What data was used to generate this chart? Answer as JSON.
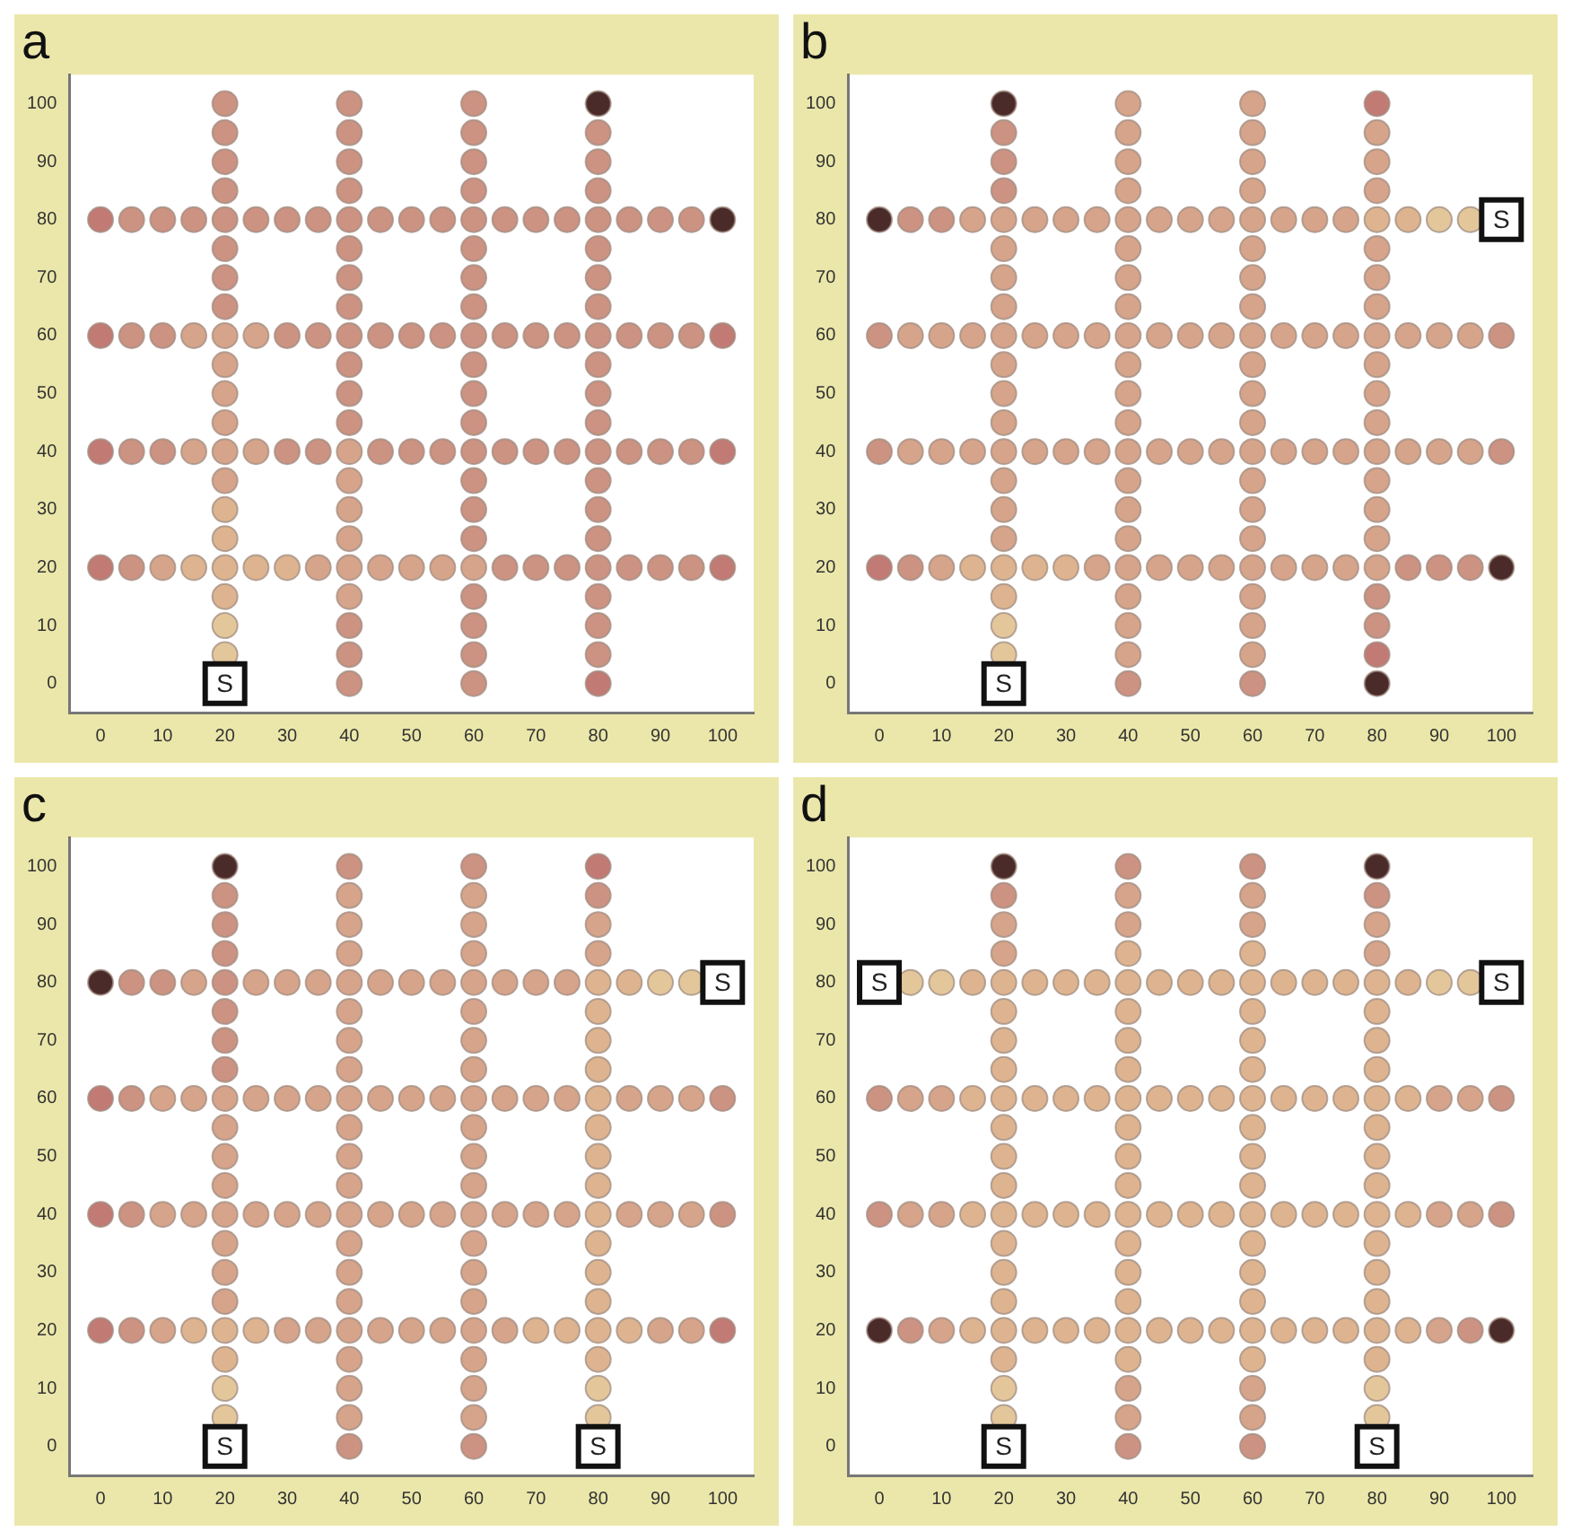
{
  "chart_data": [
    {
      "type": "scatter",
      "title": "a",
      "xlim": [
        -5,
        105
      ],
      "ylim": [
        -5,
        105
      ],
      "xticks": [
        0,
        10,
        20,
        30,
        40,
        50,
        60,
        70,
        80,
        90,
        100
      ],
      "yticks": [
        0,
        10,
        20,
        30,
        40,
        50,
        60,
        70,
        80,
        90,
        100
      ],
      "marker": "circle",
      "annotations": [
        {
          "text": "S",
          "x": 20,
          "y": 0
        }
      ],
      "series": [
        {
          "x": [
            20,
            20,
            20,
            20,
            20,
            20,
            20,
            20,
            20,
            20,
            20,
            20,
            20,
            20,
            20,
            20,
            20,
            20,
            20,
            20
          ],
          "values": [
            5,
            10,
            15,
            20,
            25,
            30,
            35,
            40,
            45,
            50,
            55,
            60,
            65,
            70,
            75,
            80,
            85,
            90,
            95,
            100
          ],
          "colors": [
            "#e3c79b",
            "#e3c79b",
            "#ddb48f",
            "#ddb48f",
            "#ddb48f",
            "#ddb48f",
            "#d6a48a",
            "#d6a48a",
            "#d6a48a",
            "#d6a48a",
            "#d6a48a",
            "#d6a48a",
            "#cc9282",
            "#cc9282",
            "#cc9282",
            "#cc9282",
            "#cc9282",
            "#cc9282",
            "#cc9282",
            "#cc9282"
          ]
        },
        {
          "x": [
            40,
            40,
            40,
            40,
            40,
            40,
            40,
            40,
            40,
            40,
            40,
            40,
            40,
            40,
            40,
            40,
            40,
            40,
            40,
            40,
            40
          ],
          "values": [
            0,
            5,
            10,
            15,
            20,
            25,
            30,
            35,
            40,
            45,
            50,
            55,
            60,
            65,
            70,
            75,
            80,
            85,
            90,
            95,
            100
          ],
          "colors": [
            "#cc9282",
            "#cc9282",
            "#cc9282",
            "#d6a48a",
            "#d6a48a",
            "#d6a48a",
            "#d6a48a",
            "#d6a48a",
            "#d6a48a",
            "#cc9282",
            "#cc9282",
            "#cc9282",
            "#cc9282",
            "#cc9282",
            "#cc9282",
            "#cc9282",
            "#cc9282",
            "#cc9282",
            "#cc9282",
            "#cc9282",
            "#cc9282"
          ]
        },
        {
          "x": [
            60,
            60,
            60,
            60,
            60,
            60,
            60,
            60,
            60,
            60,
            60,
            60,
            60,
            60,
            60,
            60,
            60,
            60,
            60,
            60,
            60
          ],
          "values": [
            0,
            5,
            10,
            15,
            20,
            25,
            30,
            35,
            40,
            45,
            50,
            55,
            60,
            65,
            70,
            75,
            80,
            85,
            90,
            95,
            100
          ],
          "colors": [
            "#cc9282",
            "#cc9282",
            "#cc9282",
            "#cc9282",
            "#d6a48a",
            "#cc9282",
            "#cc9282",
            "#cc9282",
            "#cc9282",
            "#cc9282",
            "#cc9282",
            "#cc9282",
            "#cc9282",
            "#cc9282",
            "#cc9282",
            "#cc9282",
            "#cc9282",
            "#cc9282",
            "#cc9282",
            "#cc9282",
            "#cc9282"
          ]
        },
        {
          "x": [
            80,
            80,
            80,
            80,
            80,
            80,
            80,
            80,
            80,
            80,
            80,
            80,
            80,
            80,
            80,
            80,
            80,
            80,
            80,
            80,
            80
          ],
          "values": [
            0,
            5,
            10,
            15,
            20,
            25,
            30,
            35,
            40,
            45,
            50,
            55,
            60,
            65,
            70,
            75,
            80,
            85,
            90,
            95,
            100
          ],
          "colors": [
            "#c27a74",
            "#cc9282",
            "#cc9282",
            "#cc9282",
            "#cc9282",
            "#cc9282",
            "#cc9282",
            "#cc9282",
            "#cc9282",
            "#cc9282",
            "#cc9282",
            "#cc9282",
            "#cc9282",
            "#cc9282",
            "#cc9282",
            "#cc9282",
            "#cc9282",
            "#cc9282",
            "#cc9282",
            "#cc9282",
            "#4b2b29"
          ]
        },
        {
          "x": [
            0,
            5,
            10,
            15,
            25,
            30,
            35,
            45,
            50,
            55,
            65,
            70,
            75,
            85,
            90,
            95,
            100
          ],
          "values": [
            20,
            20,
            20,
            20,
            20,
            20,
            20,
            20,
            20,
            20,
            20,
            20,
            20,
            20,
            20,
            20,
            20
          ],
          "colors": [
            "#c27a74",
            "#cc9282",
            "#d6a48a",
            "#ddb48f",
            "#ddb48f",
            "#ddb48f",
            "#d6a48a",
            "#d6a48a",
            "#d6a48a",
            "#d6a48a",
            "#cc9282",
            "#cc9282",
            "#cc9282",
            "#cc9282",
            "#cc9282",
            "#cc9282",
            "#c27a74"
          ]
        },
        {
          "x": [
            0,
            5,
            10,
            15,
            25,
            30,
            35,
            45,
            50,
            55,
            65,
            70,
            75,
            85,
            90,
            95,
            100
          ],
          "values": [
            40,
            40,
            40,
            40,
            40,
            40,
            40,
            40,
            40,
            40,
            40,
            40,
            40,
            40,
            40,
            40,
            40
          ],
          "colors": [
            "#c27a74",
            "#cc9282",
            "#cc9282",
            "#d6a48a",
            "#d6a48a",
            "#cc9282",
            "#cc9282",
            "#cc9282",
            "#cc9282",
            "#cc9282",
            "#cc9282",
            "#cc9282",
            "#cc9282",
            "#cc9282",
            "#cc9282",
            "#cc9282",
            "#c27a74"
          ]
        },
        {
          "x": [
            0,
            5,
            10,
            15,
            25,
            30,
            35,
            45,
            50,
            55,
            65,
            70,
            75,
            85,
            90,
            95,
            100
          ],
          "values": [
            60,
            60,
            60,
            60,
            60,
            60,
            60,
            60,
            60,
            60,
            60,
            60,
            60,
            60,
            60,
            60,
            60
          ],
          "colors": [
            "#c27a74",
            "#cc9282",
            "#cc9282",
            "#d6a48a",
            "#d6a48a",
            "#cc9282",
            "#cc9282",
            "#cc9282",
            "#cc9282",
            "#cc9282",
            "#cc9282",
            "#cc9282",
            "#cc9282",
            "#cc9282",
            "#cc9282",
            "#cc9282",
            "#c27a74"
          ]
        },
        {
          "x": [
            0,
            5,
            10,
            15,
            25,
            30,
            35,
            45,
            50,
            55,
            65,
            70,
            75,
            85,
            90,
            95,
            100
          ],
          "values": [
            80,
            80,
            80,
            80,
            80,
            80,
            80,
            80,
            80,
            80,
            80,
            80,
            80,
            80,
            80,
            80,
            80
          ],
          "colors": [
            "#c27a74",
            "#cc9282",
            "#cc9282",
            "#cc9282",
            "#cc9282",
            "#cc9282",
            "#cc9282",
            "#cc9282",
            "#cc9282",
            "#cc9282",
            "#cc9282",
            "#cc9282",
            "#cc9282",
            "#cc9282",
            "#cc9282",
            "#cc9282",
            "#4b2b29"
          ]
        }
      ]
    },
    {
      "type": "scatter",
      "title": "b",
      "xlim": [
        -5,
        105
      ],
      "ylim": [
        -5,
        105
      ],
      "xticks": [
        0,
        10,
        20,
        30,
        40,
        50,
        60,
        70,
        80,
        90,
        100
      ],
      "yticks": [
        0,
        10,
        20,
        30,
        40,
        50,
        60,
        70,
        80,
        90,
        100
      ],
      "marker": "circle",
      "annotations": [
        {
          "text": "S",
          "x": 20,
          "y": 0
        },
        {
          "text": "S",
          "x": 100,
          "y": 80
        }
      ],
      "series": [
        {
          "x": [
            20,
            20,
            20,
            20,
            20,
            20,
            20,
            20,
            20,
            20,
            20,
            20,
            20,
            20,
            20,
            20,
            20,
            20,
            20,
            20
          ],
          "values": [
            5,
            10,
            15,
            20,
            25,
            30,
            35,
            40,
            45,
            50,
            55,
            60,
            65,
            70,
            75,
            80,
            85,
            90,
            95,
            100
          ],
          "colors": [
            "#e3c79b",
            "#e3c79b",
            "#ddb48f",
            "#ddb48f",
            "#d6a48a",
            "#d6a48a",
            "#d6a48a",
            "#d6a48a",
            "#d6a48a",
            "#d6a48a",
            "#d6a48a",
            "#d6a48a",
            "#d6a48a",
            "#d6a48a",
            "#d6a48a",
            "#d6a48a",
            "#cc9282",
            "#cc9282",
            "#cc9282",
            "#4b2b29"
          ]
        },
        {
          "x": [
            40,
            40,
            40,
            40,
            40,
            40,
            40,
            40,
            40,
            40,
            40,
            40,
            40,
            40,
            40,
            40,
            40,
            40,
            40,
            40,
            40
          ],
          "values": [
            0,
            5,
            10,
            15,
            20,
            25,
            30,
            35,
            40,
            45,
            50,
            55,
            60,
            65,
            70,
            75,
            80,
            85,
            90,
            95,
            100
          ],
          "colors": [
            "#cc9282",
            "#d6a48a",
            "#d6a48a",
            "#d6a48a",
            "#d6a48a",
            "#d6a48a",
            "#d6a48a",
            "#d6a48a",
            "#d6a48a",
            "#d6a48a",
            "#d6a48a",
            "#d6a48a",
            "#d6a48a",
            "#d6a48a",
            "#d6a48a",
            "#d6a48a",
            "#d6a48a",
            "#d6a48a",
            "#d6a48a",
            "#d6a48a",
            "#d6a48a"
          ]
        },
        {
          "x": [
            60,
            60,
            60,
            60,
            60,
            60,
            60,
            60,
            60,
            60,
            60,
            60,
            60,
            60,
            60,
            60,
            60,
            60,
            60,
            60,
            60
          ],
          "values": [
            0,
            5,
            10,
            15,
            20,
            25,
            30,
            35,
            40,
            45,
            50,
            55,
            60,
            65,
            70,
            75,
            80,
            85,
            90,
            95,
            100
          ],
          "colors": [
            "#cc9282",
            "#d6a48a",
            "#d6a48a",
            "#d6a48a",
            "#d6a48a",
            "#d6a48a",
            "#d6a48a",
            "#d6a48a",
            "#d6a48a",
            "#d6a48a",
            "#d6a48a",
            "#d6a48a",
            "#d6a48a",
            "#d6a48a",
            "#d6a48a",
            "#d6a48a",
            "#d6a48a",
            "#d6a48a",
            "#d6a48a",
            "#d6a48a",
            "#d6a48a"
          ]
        },
        {
          "x": [
            80,
            80,
            80,
            80,
            80,
            80,
            80,
            80,
            80,
            80,
            80,
            80,
            80,
            80,
            80,
            80,
            80,
            80,
            80,
            80,
            80
          ],
          "values": [
            0,
            5,
            10,
            15,
            20,
            25,
            30,
            35,
            40,
            45,
            50,
            55,
            60,
            65,
            70,
            75,
            80,
            85,
            90,
            95,
            100
          ],
          "colors": [
            "#4b2b29",
            "#c27a74",
            "#cc9282",
            "#cc9282",
            "#d6a48a",
            "#d6a48a",
            "#d6a48a",
            "#d6a48a",
            "#d6a48a",
            "#d6a48a",
            "#d6a48a",
            "#d6a48a",
            "#d6a48a",
            "#d6a48a",
            "#d6a48a",
            "#d6a48a",
            "#ddb48f",
            "#d6a48a",
            "#d6a48a",
            "#d6a48a",
            "#c27a74"
          ]
        },
        {
          "x": [
            0,
            5,
            10,
            15,
            25,
            30,
            35,
            45,
            50,
            55,
            65,
            70,
            75,
            85,
            90,
            95,
            100
          ],
          "values": [
            20,
            20,
            20,
            20,
            20,
            20,
            20,
            20,
            20,
            20,
            20,
            20,
            20,
            20,
            20,
            20,
            20
          ],
          "colors": [
            "#c27a74",
            "#cc9282",
            "#d6a48a",
            "#ddb48f",
            "#ddb48f",
            "#ddb48f",
            "#d6a48a",
            "#d6a48a",
            "#d6a48a",
            "#d6a48a",
            "#d6a48a",
            "#d6a48a",
            "#d6a48a",
            "#cc9282",
            "#cc9282",
            "#cc9282",
            "#4b2b29"
          ]
        },
        {
          "x": [
            0,
            5,
            10,
            15,
            25,
            30,
            35,
            45,
            50,
            55,
            65,
            70,
            75,
            85,
            90,
            95,
            100
          ],
          "values": [
            40,
            40,
            40,
            40,
            40,
            40,
            40,
            40,
            40,
            40,
            40,
            40,
            40,
            40,
            40,
            40,
            40
          ],
          "colors": [
            "#cc9282",
            "#d6a48a",
            "#d6a48a",
            "#d6a48a",
            "#d6a48a",
            "#d6a48a",
            "#d6a48a",
            "#d6a48a",
            "#d6a48a",
            "#d6a48a",
            "#d6a48a",
            "#d6a48a",
            "#d6a48a",
            "#d6a48a",
            "#d6a48a",
            "#d6a48a",
            "#cc9282"
          ]
        },
        {
          "x": [
            0,
            5,
            10,
            15,
            25,
            30,
            35,
            45,
            50,
            55,
            65,
            70,
            75,
            85,
            90,
            95,
            100
          ],
          "values": [
            60,
            60,
            60,
            60,
            60,
            60,
            60,
            60,
            60,
            60,
            60,
            60,
            60,
            60,
            60,
            60,
            60
          ],
          "colors": [
            "#cc9282",
            "#d6a48a",
            "#d6a48a",
            "#d6a48a",
            "#d6a48a",
            "#d6a48a",
            "#d6a48a",
            "#d6a48a",
            "#d6a48a",
            "#d6a48a",
            "#d6a48a",
            "#d6a48a",
            "#d6a48a",
            "#d6a48a",
            "#d6a48a",
            "#d6a48a",
            "#cc9282"
          ]
        },
        {
          "x": [
            0,
            5,
            10,
            15,
            25,
            30,
            35,
            45,
            50,
            55,
            65,
            70,
            75,
            85,
            90,
            95
          ],
          "values": [
            80,
            80,
            80,
            80,
            80,
            80,
            80,
            80,
            80,
            80,
            80,
            80,
            80,
            80,
            80,
            80
          ],
          "colors": [
            "#4b2b29",
            "#cc9282",
            "#cc9282",
            "#d6a48a",
            "#d6a48a",
            "#d6a48a",
            "#d6a48a",
            "#d6a48a",
            "#d6a48a",
            "#d6a48a",
            "#d6a48a",
            "#d6a48a",
            "#d6a48a",
            "#ddb48f",
            "#e3c79b",
            "#e3c79b"
          ]
        }
      ]
    },
    {
      "type": "scatter",
      "title": "c",
      "xlim": [
        -5,
        105
      ],
      "ylim": [
        -5,
        105
      ],
      "xticks": [
        0,
        10,
        20,
        30,
        40,
        50,
        60,
        70,
        80,
        90,
        100
      ],
      "yticks": [
        0,
        10,
        20,
        30,
        40,
        50,
        60,
        70,
        80,
        90,
        100
      ],
      "marker": "circle",
      "annotations": [
        {
          "text": "S",
          "x": 20,
          "y": 0
        },
        {
          "text": "S",
          "x": 80,
          "y": 0
        },
        {
          "text": "S",
          "x": 100,
          "y": 80
        }
      ],
      "series": [
        {
          "x": [
            20,
            20,
            20,
            20,
            20,
            20,
            20,
            20,
            20,
            20,
            20,
            20,
            20,
            20,
            20,
            20,
            20,
            20,
            20,
            20
          ],
          "values": [
            5,
            10,
            15,
            20,
            25,
            30,
            35,
            40,
            45,
            50,
            55,
            60,
            65,
            70,
            75,
            80,
            85,
            90,
            95,
            100
          ],
          "colors": [
            "#e3c79b",
            "#e3c79b",
            "#ddb48f",
            "#ddb48f",
            "#d6a48a",
            "#d6a48a",
            "#d6a48a",
            "#d6a48a",
            "#d6a48a",
            "#d6a48a",
            "#d6a48a",
            "#d6a48a",
            "#cc9282",
            "#cc9282",
            "#cc9282",
            "#cc9282",
            "#cc9282",
            "#cc9282",
            "#cc9282",
            "#4b2b29"
          ]
        },
        {
          "x": [
            40,
            40,
            40,
            40,
            40,
            40,
            40,
            40,
            40,
            40,
            40,
            40,
            40,
            40,
            40,
            40,
            40,
            40,
            40,
            40,
            40
          ],
          "values": [
            0,
            5,
            10,
            15,
            20,
            25,
            30,
            35,
            40,
            45,
            50,
            55,
            60,
            65,
            70,
            75,
            80,
            85,
            90,
            95,
            100
          ],
          "colors": [
            "#cc9282",
            "#d6a48a",
            "#d6a48a",
            "#d6a48a",
            "#d6a48a",
            "#d6a48a",
            "#d6a48a",
            "#d6a48a",
            "#d6a48a",
            "#d6a48a",
            "#d6a48a",
            "#d6a48a",
            "#d6a48a",
            "#d6a48a",
            "#d6a48a",
            "#d6a48a",
            "#d6a48a",
            "#d6a48a",
            "#d6a48a",
            "#d6a48a",
            "#cc9282"
          ]
        },
        {
          "x": [
            60,
            60,
            60,
            60,
            60,
            60,
            60,
            60,
            60,
            60,
            60,
            60,
            60,
            60,
            60,
            60,
            60,
            60,
            60,
            60,
            60
          ],
          "values": [
            0,
            5,
            10,
            15,
            20,
            25,
            30,
            35,
            40,
            45,
            50,
            55,
            60,
            65,
            70,
            75,
            80,
            85,
            90,
            95,
            100
          ],
          "colors": [
            "#cc9282",
            "#d6a48a",
            "#d6a48a",
            "#d6a48a",
            "#d6a48a",
            "#d6a48a",
            "#d6a48a",
            "#d6a48a",
            "#d6a48a",
            "#d6a48a",
            "#d6a48a",
            "#d6a48a",
            "#d6a48a",
            "#d6a48a",
            "#d6a48a",
            "#d6a48a",
            "#d6a48a",
            "#d6a48a",
            "#d6a48a",
            "#d6a48a",
            "#cc9282"
          ]
        },
        {
          "x": [
            80,
            80,
            80,
            80,
            80,
            80,
            80,
            80,
            80,
            80,
            80,
            80,
            80,
            80,
            80,
            80,
            80,
            80,
            80,
            80
          ],
          "values": [
            5,
            10,
            15,
            20,
            25,
            30,
            35,
            40,
            45,
            50,
            55,
            60,
            65,
            70,
            75,
            80,
            85,
            90,
            95,
            100
          ],
          "colors": [
            "#e3c79b",
            "#e3c79b",
            "#ddb48f",
            "#ddb48f",
            "#ddb48f",
            "#ddb48f",
            "#ddb48f",
            "#ddb48f",
            "#ddb48f",
            "#ddb48f",
            "#ddb48f",
            "#ddb48f",
            "#ddb48f",
            "#ddb48f",
            "#ddb48f",
            "#ddb48f",
            "#d6a48a",
            "#d6a48a",
            "#cc9282",
            "#c27a74"
          ]
        },
        {
          "x": [
            0,
            5,
            10,
            15,
            25,
            30,
            35,
            45,
            50,
            55,
            65,
            70,
            75,
            85,
            90,
            95,
            100
          ],
          "values": [
            20,
            20,
            20,
            20,
            20,
            20,
            20,
            20,
            20,
            20,
            20,
            20,
            20,
            20,
            20,
            20,
            20
          ],
          "colors": [
            "#c27a74",
            "#cc9282",
            "#d6a48a",
            "#ddb48f",
            "#ddb48f",
            "#d6a48a",
            "#d6a48a",
            "#d6a48a",
            "#d6a48a",
            "#d6a48a",
            "#d6a48a",
            "#ddb48f",
            "#ddb48f",
            "#ddb48f",
            "#d6a48a",
            "#d6a48a",
            "#c27a74"
          ]
        },
        {
          "x": [
            0,
            5,
            10,
            15,
            25,
            30,
            35,
            45,
            50,
            55,
            65,
            70,
            75,
            85,
            90,
            95,
            100
          ],
          "values": [
            40,
            40,
            40,
            40,
            40,
            40,
            40,
            40,
            40,
            40,
            40,
            40,
            40,
            40,
            40,
            40,
            40
          ],
          "colors": [
            "#c27a74",
            "#cc9282",
            "#d6a48a",
            "#d6a48a",
            "#d6a48a",
            "#d6a48a",
            "#d6a48a",
            "#d6a48a",
            "#d6a48a",
            "#d6a48a",
            "#d6a48a",
            "#d6a48a",
            "#d6a48a",
            "#d6a48a",
            "#d6a48a",
            "#d6a48a",
            "#cc9282"
          ]
        },
        {
          "x": [
            0,
            5,
            10,
            15,
            25,
            30,
            35,
            45,
            50,
            55,
            65,
            70,
            75,
            85,
            90,
            95,
            100
          ],
          "values": [
            60,
            60,
            60,
            60,
            60,
            60,
            60,
            60,
            60,
            60,
            60,
            60,
            60,
            60,
            60,
            60,
            60
          ],
          "colors": [
            "#c27a74",
            "#cc9282",
            "#d6a48a",
            "#d6a48a",
            "#d6a48a",
            "#d6a48a",
            "#d6a48a",
            "#d6a48a",
            "#d6a48a",
            "#d6a48a",
            "#d6a48a",
            "#d6a48a",
            "#d6a48a",
            "#d6a48a",
            "#d6a48a",
            "#d6a48a",
            "#cc9282"
          ]
        },
        {
          "x": [
            0,
            5,
            10,
            15,
            25,
            30,
            35,
            45,
            50,
            55,
            65,
            70,
            75,
            85,
            90,
            95
          ],
          "values": [
            80,
            80,
            80,
            80,
            80,
            80,
            80,
            80,
            80,
            80,
            80,
            80,
            80,
            80,
            80,
            80
          ],
          "colors": [
            "#4b2b29",
            "#cc9282",
            "#cc9282",
            "#d6a48a",
            "#d6a48a",
            "#d6a48a",
            "#d6a48a",
            "#d6a48a",
            "#d6a48a",
            "#d6a48a",
            "#d6a48a",
            "#d6a48a",
            "#d6a48a",
            "#ddb48f",
            "#e3c79b",
            "#e3c79b"
          ]
        }
      ]
    },
    {
      "type": "scatter",
      "title": "d",
      "xlim": [
        -5,
        105
      ],
      "ylim": [
        -5,
        105
      ],
      "xticks": [
        0,
        10,
        20,
        30,
        40,
        50,
        60,
        70,
        80,
        90,
        100
      ],
      "yticks": [
        0,
        10,
        20,
        30,
        40,
        50,
        60,
        70,
        80,
        90,
        100
      ],
      "marker": "circle",
      "annotations": [
        {
          "text": "S",
          "x": 0,
          "y": 80
        },
        {
          "text": "S",
          "x": 100,
          "y": 80
        },
        {
          "text": "S",
          "x": 20,
          "y": 0
        },
        {
          "text": "S",
          "x": 80,
          "y": 0
        }
      ],
      "series": [
        {
          "x": [
            20,
            20,
            20,
            20,
            20,
            20,
            20,
            20,
            20,
            20,
            20,
            20,
            20,
            20,
            20,
            20,
            20,
            20,
            20,
            20
          ],
          "values": [
            5,
            10,
            15,
            20,
            25,
            30,
            35,
            40,
            45,
            50,
            55,
            60,
            65,
            70,
            75,
            80,
            85,
            90,
            95,
            100
          ],
          "colors": [
            "#e3c79b",
            "#e3c79b",
            "#ddb48f",
            "#ddb48f",
            "#ddb48f",
            "#ddb48f",
            "#ddb48f",
            "#ddb48f",
            "#ddb48f",
            "#ddb48f",
            "#ddb48f",
            "#ddb48f",
            "#ddb48f",
            "#ddb48f",
            "#ddb48f",
            "#ddb48f",
            "#d6a48a",
            "#d6a48a",
            "#cc9282",
            "#4b2b29"
          ]
        },
        {
          "x": [
            40,
            40,
            40,
            40,
            40,
            40,
            40,
            40,
            40,
            40,
            40,
            40,
            40,
            40,
            40,
            40,
            40,
            40,
            40,
            40,
            40
          ],
          "values": [
            0,
            5,
            10,
            15,
            20,
            25,
            30,
            35,
            40,
            45,
            50,
            55,
            60,
            65,
            70,
            75,
            80,
            85,
            90,
            95,
            100
          ],
          "colors": [
            "#cc9282",
            "#d6a48a",
            "#d6a48a",
            "#ddb48f",
            "#ddb48f",
            "#ddb48f",
            "#ddb48f",
            "#ddb48f",
            "#ddb48f",
            "#ddb48f",
            "#ddb48f",
            "#ddb48f",
            "#ddb48f",
            "#ddb48f",
            "#ddb48f",
            "#ddb48f",
            "#ddb48f",
            "#ddb48f",
            "#d6a48a",
            "#d6a48a",
            "#cc9282"
          ]
        },
        {
          "x": [
            60,
            60,
            60,
            60,
            60,
            60,
            60,
            60,
            60,
            60,
            60,
            60,
            60,
            60,
            60,
            60,
            60,
            60,
            60,
            60,
            60
          ],
          "values": [
            0,
            5,
            10,
            15,
            20,
            25,
            30,
            35,
            40,
            45,
            50,
            55,
            60,
            65,
            70,
            75,
            80,
            85,
            90,
            95,
            100
          ],
          "colors": [
            "#cc9282",
            "#d6a48a",
            "#d6a48a",
            "#ddb48f",
            "#ddb48f",
            "#ddb48f",
            "#ddb48f",
            "#ddb48f",
            "#ddb48f",
            "#ddb48f",
            "#ddb48f",
            "#ddb48f",
            "#ddb48f",
            "#ddb48f",
            "#ddb48f",
            "#ddb48f",
            "#ddb48f",
            "#ddb48f",
            "#d6a48a",
            "#d6a48a",
            "#cc9282"
          ]
        },
        {
          "x": [
            80,
            80,
            80,
            80,
            80,
            80,
            80,
            80,
            80,
            80,
            80,
            80,
            80,
            80,
            80,
            80,
            80,
            80,
            80,
            80
          ],
          "values": [
            5,
            10,
            15,
            20,
            25,
            30,
            35,
            40,
            45,
            50,
            55,
            60,
            65,
            70,
            75,
            80,
            85,
            90,
            95,
            100
          ],
          "colors": [
            "#e3c79b",
            "#e3c79b",
            "#ddb48f",
            "#ddb48f",
            "#ddb48f",
            "#ddb48f",
            "#ddb48f",
            "#ddb48f",
            "#ddb48f",
            "#ddb48f",
            "#ddb48f",
            "#ddb48f",
            "#ddb48f",
            "#ddb48f",
            "#ddb48f",
            "#ddb48f",
            "#d6a48a",
            "#d6a48a",
            "#cc9282",
            "#4b2b29"
          ]
        },
        {
          "x": [
            0,
            5,
            10,
            15,
            25,
            30,
            35,
            45,
            50,
            55,
            65,
            70,
            75,
            85,
            90,
            95,
            100
          ],
          "values": [
            20,
            20,
            20,
            20,
            20,
            20,
            20,
            20,
            20,
            20,
            20,
            20,
            20,
            20,
            20,
            20,
            20
          ],
          "colors": [
            "#4b2b29",
            "#cc9282",
            "#d6a48a",
            "#ddb48f",
            "#ddb48f",
            "#ddb48f",
            "#ddb48f",
            "#ddb48f",
            "#ddb48f",
            "#ddb48f",
            "#ddb48f",
            "#ddb48f",
            "#ddb48f",
            "#ddb48f",
            "#d6a48a",
            "#cc9282",
            "#4b2b29"
          ]
        },
        {
          "x": [
            0,
            5,
            10,
            15,
            25,
            30,
            35,
            45,
            50,
            55,
            65,
            70,
            75,
            85,
            90,
            95,
            100
          ],
          "values": [
            40,
            40,
            40,
            40,
            40,
            40,
            40,
            40,
            40,
            40,
            40,
            40,
            40,
            40,
            40,
            40,
            40
          ],
          "colors": [
            "#cc9282",
            "#d6a48a",
            "#d6a48a",
            "#ddb48f",
            "#ddb48f",
            "#ddb48f",
            "#ddb48f",
            "#ddb48f",
            "#ddb48f",
            "#ddb48f",
            "#ddb48f",
            "#ddb48f",
            "#ddb48f",
            "#ddb48f",
            "#d6a48a",
            "#d6a48a",
            "#cc9282"
          ]
        },
        {
          "x": [
            0,
            5,
            10,
            15,
            25,
            30,
            35,
            45,
            50,
            55,
            65,
            70,
            75,
            85,
            90,
            95,
            100
          ],
          "values": [
            60,
            60,
            60,
            60,
            60,
            60,
            60,
            60,
            60,
            60,
            60,
            60,
            60,
            60,
            60,
            60,
            60
          ],
          "colors": [
            "#cc9282",
            "#d6a48a",
            "#d6a48a",
            "#ddb48f",
            "#ddb48f",
            "#ddb48f",
            "#ddb48f",
            "#ddb48f",
            "#ddb48f",
            "#ddb48f",
            "#ddb48f",
            "#ddb48f",
            "#ddb48f",
            "#ddb48f",
            "#d6a48a",
            "#d6a48a",
            "#cc9282"
          ]
        },
        {
          "x": [
            5,
            10,
            15,
            25,
            30,
            35,
            45,
            50,
            55,
            65,
            70,
            75,
            85,
            90,
            95
          ],
          "values": [
            80,
            80,
            80,
            80,
            80,
            80,
            80,
            80,
            80,
            80,
            80,
            80,
            80,
            80,
            80
          ],
          "colors": [
            "#e3c79b",
            "#e3c79b",
            "#ddb48f",
            "#ddb48f",
            "#ddb48f",
            "#ddb48f",
            "#ddb48f",
            "#ddb48f",
            "#ddb48f",
            "#ddb48f",
            "#ddb48f",
            "#ddb48f",
            "#ddb48f",
            "#e3c79b",
            "#e3c79b"
          ]
        }
      ]
    }
  ]
}
